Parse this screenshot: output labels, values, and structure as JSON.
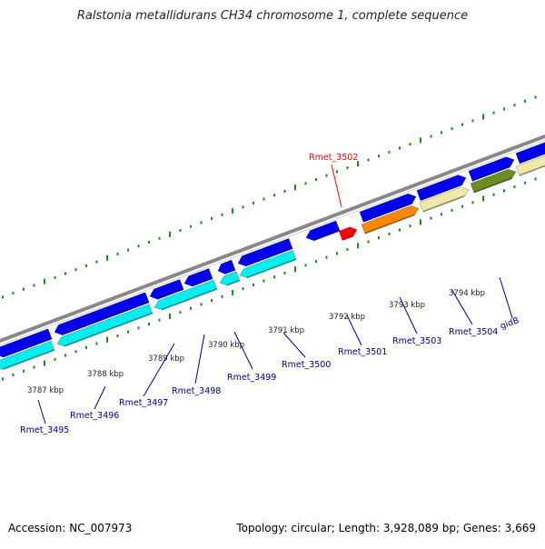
{
  "title": "Ralstonia metallidurans CH34 chromosome 1, complete sequence",
  "footer": {
    "accession_text": "Accession: NC_007973",
    "summary_text": "Topology: circular; Length: 3,928,089 bp; Genes: 3,669"
  },
  "colors": {
    "selected_gene": "#ff0000",
    "forward_gene": "#0000ee",
    "cds_cyan": "#00eeee",
    "cds_orange": "#ff8800",
    "cds_khaki": "#eee8aa",
    "cds_olive": "#6b8e23",
    "backbone": "#888888",
    "tick": "#1a8a1a",
    "gene_label": "#00008b"
  },
  "scale_labels": [
    "3787 kbp",
    "3788 kbp",
    "3789 kbp",
    "3790 kbp",
    "3791 kbp",
    "3792 kbp",
    "3793 kbp",
    "3794 kbp"
  ],
  "gene_labels": [
    {
      "name": "Rmet_3495",
      "selected": false
    },
    {
      "name": "Rmet_3496",
      "selected": false
    },
    {
      "name": "Rmet_3497",
      "selected": false
    },
    {
      "name": "Rmet_3498",
      "selected": false
    },
    {
      "name": "Rmet_3499",
      "selected": false
    },
    {
      "name": "Rmet_3500",
      "selected": false
    },
    {
      "name": "Rmet_3501",
      "selected": false
    },
    {
      "name": "Rmet_3502",
      "selected": true
    },
    {
      "name": "Rmet_3503",
      "selected": false
    },
    {
      "name": "Rmet_3504",
      "selected": false
    },
    {
      "name": "gidB",
      "selected": false
    }
  ]
}
